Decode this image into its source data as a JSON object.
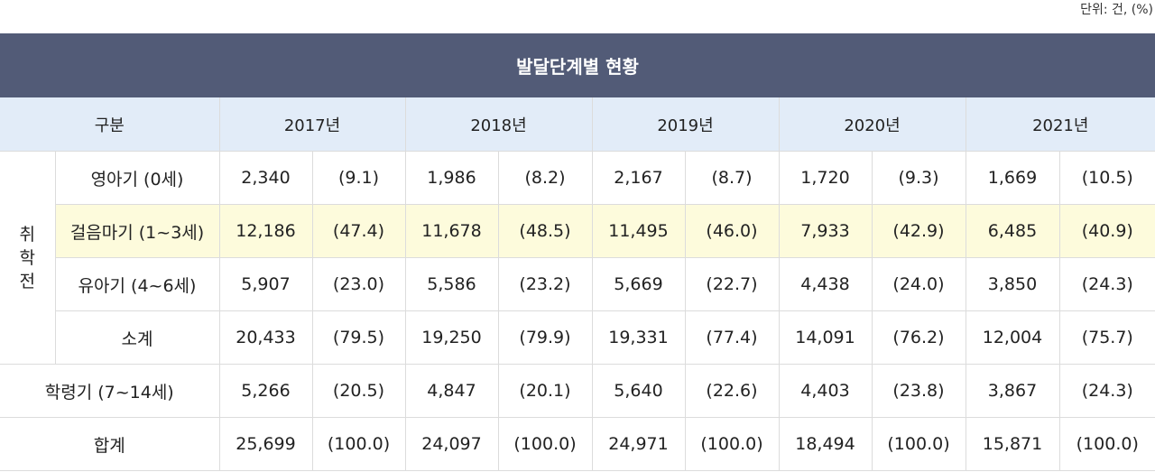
{
  "unit_note": "단위: 건, (%)",
  "title": "발달단계별 현황",
  "header": {
    "category": "구분",
    "years": [
      "2017년",
      "2018년",
      "2019년",
      "2020년",
      "2021년"
    ]
  },
  "group_label_chars": [
    "취",
    "학",
    "전"
  ],
  "rows": [
    {
      "label": "영아기 (0세)",
      "cells": [
        "2,340",
        "(9.1)",
        "1,986",
        "(8.2)",
        "2,167",
        "(8.7)",
        "1,720",
        "(9.3)",
        "1,669",
        "(10.5)"
      ]
    },
    {
      "label": "걸음마기 (1~3세)",
      "cells": [
        "12,186",
        "(47.4)",
        "11,678",
        "(48.5)",
        "11,495",
        "(46.0)",
        "7,933",
        "(42.9)",
        "6,485",
        "(40.9)"
      ]
    },
    {
      "label": "유아기 (4~6세)",
      "cells": [
        "5,907",
        "(23.0)",
        "5,586",
        "(23.2)",
        "5,669",
        "(22.7)",
        "4,438",
        "(24.0)",
        "3,850",
        "(24.3)"
      ]
    },
    {
      "label": "소계",
      "cells": [
        "20,433",
        "(79.5)",
        "19,250",
        "(79.9)",
        "19,331",
        "(77.4)",
        "14,091",
        "(76.2)",
        "12,004",
        "(75.7)"
      ]
    },
    {
      "label": "학령기 (7~14세)",
      "cells": [
        "5,266",
        "(20.5)",
        "4,847",
        "(20.1)",
        "5,640",
        "(22.6)",
        "4,403",
        "(23.8)",
        "3,867",
        "(24.3)"
      ]
    },
    {
      "label": "합계",
      "cells": [
        "25,699",
        "(100.0)",
        "24,097",
        "(100.0)",
        "24,971",
        "(100.0)",
        "18,494",
        "(100.0)",
        "15,871",
        "(100.0)"
      ]
    }
  ],
  "colors": {
    "title_bg": "#525b77",
    "header_bg": "#e2ecf8",
    "highlight_bg": "#fdfbdc"
  }
}
